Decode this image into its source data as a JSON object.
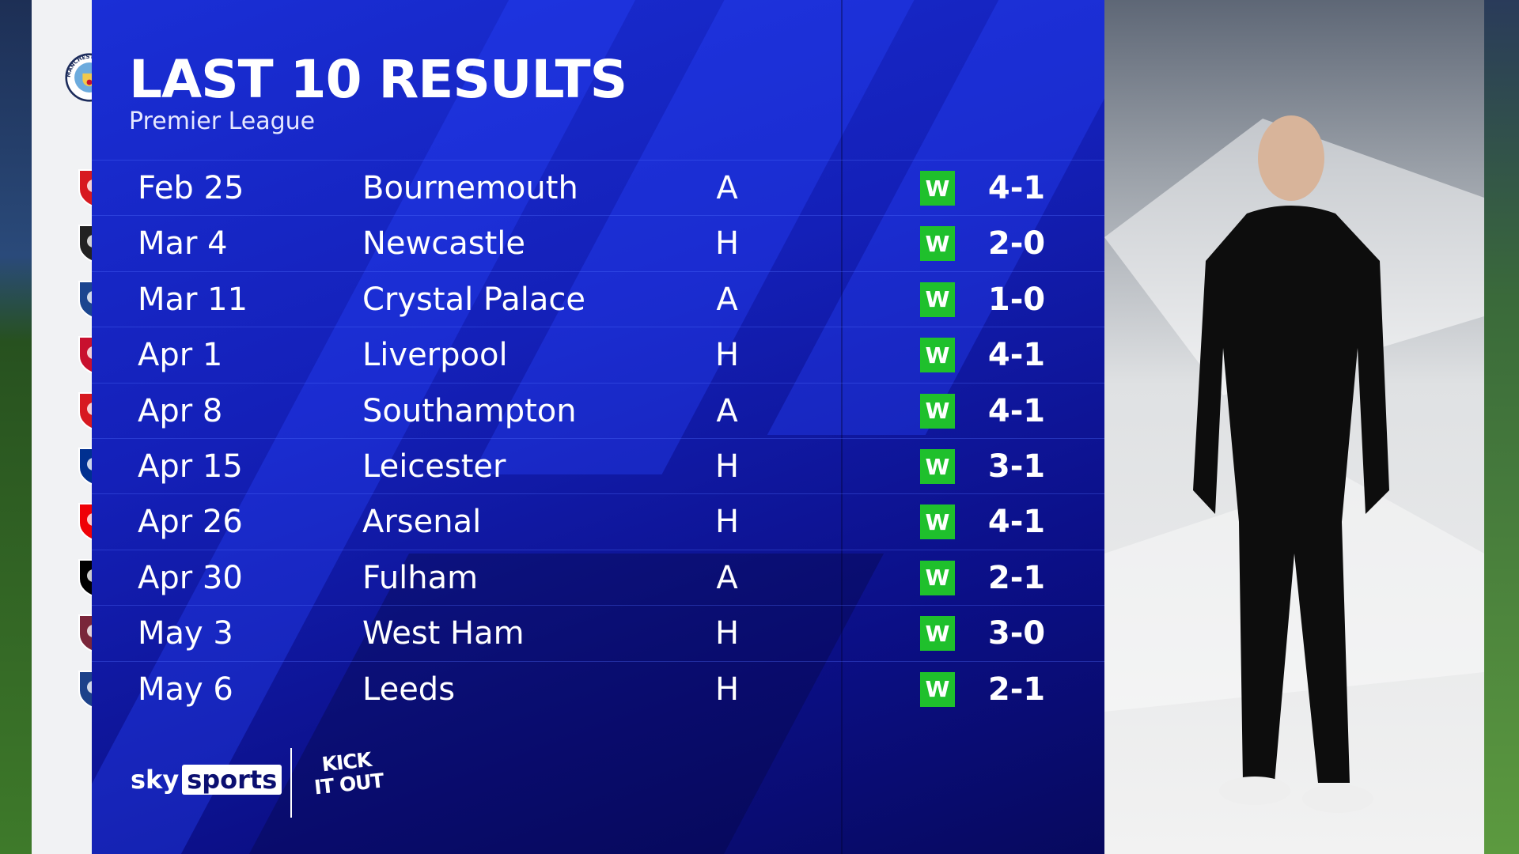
{
  "header": {
    "title": "LAST 10 RESULTS",
    "subtitle": "Premier League"
  },
  "team": {
    "name": "Manchester City",
    "badge": "man-city-badge-icon"
  },
  "results": [
    {
      "date": "Feb 25",
      "opponent": "Bournemouth",
      "venue": "A",
      "result": "W",
      "score": "4-1",
      "badge_color": "#d71920"
    },
    {
      "date": "Mar 4",
      "opponent": "Newcastle",
      "venue": "H",
      "result": "W",
      "score": "2-0",
      "badge_color": "#222222"
    },
    {
      "date": "Mar 11",
      "opponent": "Crystal Palace",
      "venue": "A",
      "result": "W",
      "score": "1-0",
      "badge_color": "#1b458f"
    },
    {
      "date": "Apr 1",
      "opponent": "Liverpool",
      "venue": "H",
      "result": "W",
      "score": "4-1",
      "badge_color": "#c8102e"
    },
    {
      "date": "Apr 8",
      "opponent": "Southampton",
      "venue": "A",
      "result": "W",
      "score": "4-1",
      "badge_color": "#d71920"
    },
    {
      "date": "Apr 15",
      "opponent": "Leicester",
      "venue": "H",
      "result": "W",
      "score": "3-1",
      "badge_color": "#003090"
    },
    {
      "date": "Apr 26",
      "opponent": "Arsenal",
      "venue": "H",
      "result": "W",
      "score": "4-1",
      "badge_color": "#ef0107"
    },
    {
      "date": "Apr 30",
      "opponent": "Fulham",
      "venue": "A",
      "result": "W",
      "score": "2-1",
      "badge_color": "#000000"
    },
    {
      "date": "May 3",
      "opponent": "West Ham",
      "venue": "H",
      "result": "W",
      "score": "3-0",
      "badge_color": "#7a263a"
    },
    {
      "date": "May 6",
      "opponent": "Leeds",
      "venue": "H",
      "result": "W",
      "score": "2-1",
      "badge_color": "#1d428a"
    }
  ],
  "colors": {
    "win": "#1fc02c",
    "panel": "#1420b8"
  },
  "branding": {
    "broadcaster_1": "sky",
    "broadcaster_2": "sports",
    "campaign": "KICK IT OUT"
  }
}
